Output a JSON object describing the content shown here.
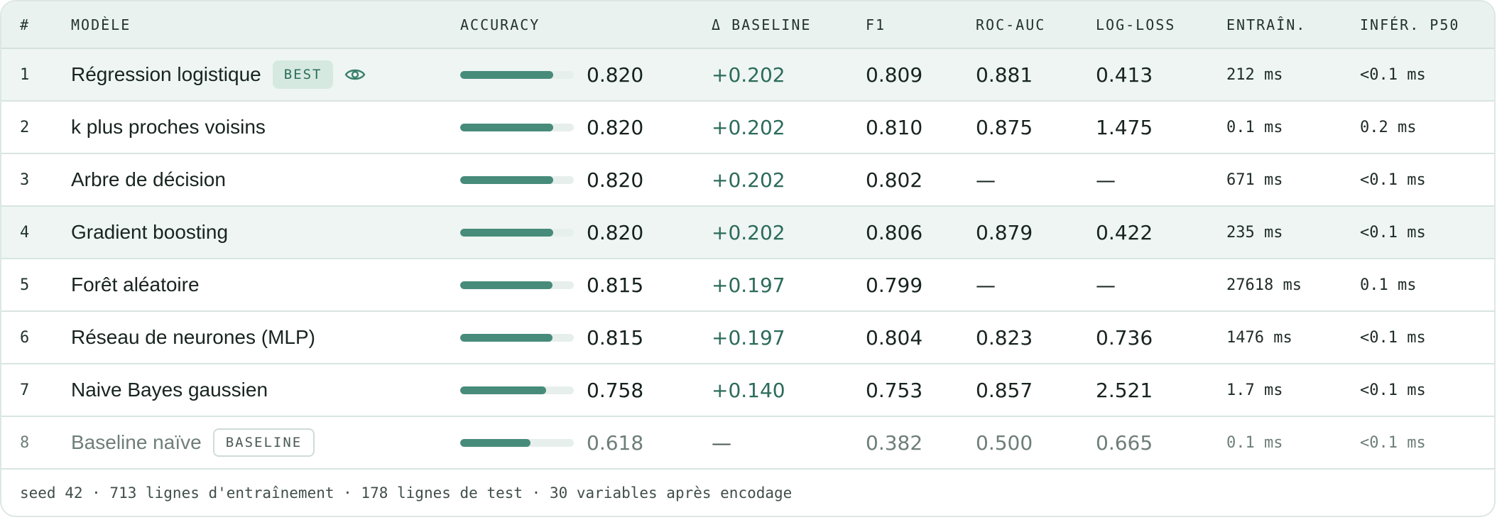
{
  "columns": {
    "index": "#",
    "model": "MODÈLE",
    "accuracy": "ACCURACY",
    "delta_baseline": "Δ BASELINE",
    "f1": "F1",
    "roc_auc": "ROC-AUC",
    "log_loss": "LOG-LOSS",
    "train": "ENTRAÎN.",
    "infer": "INFÉR. P50"
  },
  "rows": [
    {
      "index": "1",
      "model": "Régression logistique",
      "badge": "BEST",
      "accuracy": "0.820",
      "accuracy_fraction": 0.82,
      "delta": "+0.202",
      "f1": "0.809",
      "roc_auc": "0.881",
      "log_loss": "0.413",
      "train": "212 ms",
      "infer": "<0.1 ms"
    },
    {
      "index": "2",
      "model": "k plus proches voisins",
      "accuracy": "0.820",
      "accuracy_fraction": 0.82,
      "delta": "+0.202",
      "f1": "0.810",
      "roc_auc": "0.875",
      "log_loss": "1.475",
      "train": "0.1 ms",
      "infer": "0.2 ms"
    },
    {
      "index": "3",
      "model": "Arbre de décision",
      "accuracy": "0.820",
      "accuracy_fraction": 0.82,
      "delta": "+0.202",
      "f1": "0.802",
      "roc_auc": "—",
      "log_loss": "—",
      "train": "671 ms",
      "infer": "<0.1 ms"
    },
    {
      "index": "4",
      "model": "Gradient boosting",
      "accuracy": "0.820",
      "accuracy_fraction": 0.82,
      "delta": "+0.202",
      "f1": "0.806",
      "roc_auc": "0.879",
      "log_loss": "0.422",
      "train": "235 ms",
      "infer": "<0.1 ms"
    },
    {
      "index": "5",
      "model": "Forêt aléatoire",
      "accuracy": "0.815",
      "accuracy_fraction": 0.815,
      "delta": "+0.197",
      "f1": "0.799",
      "roc_auc": "—",
      "log_loss": "—",
      "train": "27618 ms",
      "infer": "0.1 ms"
    },
    {
      "index": "6",
      "model": "Réseau de neurones (MLP)",
      "accuracy": "0.815",
      "accuracy_fraction": 0.815,
      "delta": "+0.197",
      "f1": "0.804",
      "roc_auc": "0.823",
      "log_loss": "0.736",
      "train": "1476 ms",
      "infer": "<0.1 ms"
    },
    {
      "index": "7",
      "model": "Naive Bayes gaussien",
      "accuracy": "0.758",
      "accuracy_fraction": 0.758,
      "delta": "+0.140",
      "f1": "0.753",
      "roc_auc": "0.857",
      "log_loss": "2.521",
      "train": "1.7 ms",
      "infer": "<0.1 ms"
    },
    {
      "index": "8",
      "model": "Baseline naïve",
      "badge": "BASELINE",
      "accuracy": "0.618",
      "accuracy_fraction": 0.618,
      "delta": "—",
      "f1": "0.382",
      "roc_auc": "0.500",
      "log_loss": "0.665",
      "train": "0.1 ms",
      "infer": "<0.1 ms"
    }
  ],
  "footer": "seed 42 · 713 lignes d'entraînement · 178 lignes de test · 30 variables après encodage",
  "colors": {
    "accent": "#478b7b",
    "delta_text": "#2c6b5a",
    "highlight_row": "#eef5f2",
    "header_bg": "#eaf2ef"
  },
  "icons": {
    "preview": "eye-icon"
  }
}
